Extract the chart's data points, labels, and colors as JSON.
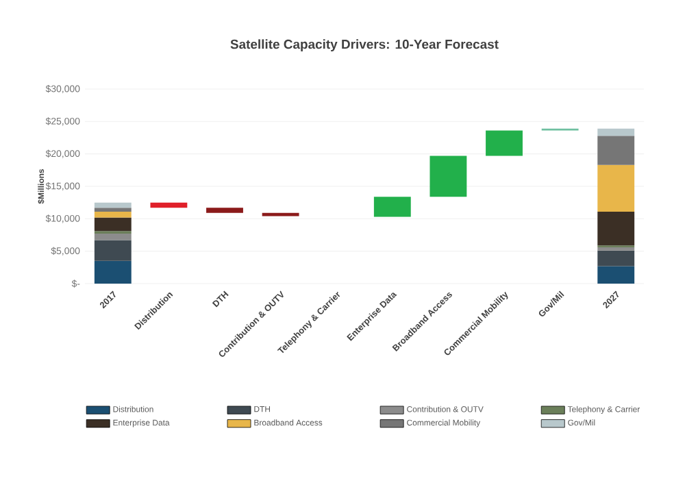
{
  "chart_data": {
    "type": "bar",
    "title": "Satellite Capacity Drivers: 10-Year Forecast",
    "ylabel": "$Millions",
    "categories": [
      "2017",
      "Distribution",
      "DTH",
      "Contribution & OUTV",
      "Telephony & Carrier",
      "Enterprise Data",
      "Broadband Access",
      "Commercial Mobility",
      "Gov/Mil",
      "2027"
    ],
    "stacked": true,
    "series": [
      {
        "name": "Distribution",
        "color": "#1b4f72",
        "values": [
          3500,
          null,
          null,
          null,
          null,
          null,
          null,
          null,
          null,
          2700
        ]
      },
      {
        "name": "DTH",
        "color": "#3f4a52",
        "values": [
          3200,
          null,
          null,
          null,
          null,
          null,
          null,
          null,
          null,
          2400
        ]
      },
      {
        "name": "Contribution & OUTV",
        "color": "#8c8c8c",
        "values": [
          1000,
          null,
          null,
          null,
          null,
          null,
          null,
          null,
          null,
          500
        ]
      },
      {
        "name": "Telephony & Carrier",
        "color": "#6b7f5a",
        "values": [
          400,
          null,
          null,
          null,
          null,
          null,
          null,
          null,
          null,
          300
        ]
      },
      {
        "name": "Enterprise Data",
        "color": "#3b2f25",
        "values": [
          2100,
          null,
          null,
          null,
          null,
          null,
          null,
          null,
          null,
          5200
        ]
      },
      {
        "name": "Broadband Access",
        "color": "#e8b64a",
        "values": [
          900,
          null,
          null,
          null,
          null,
          null,
          null,
          null,
          null,
          7200
        ]
      },
      {
        "name": "Commercial Mobility",
        "color": "#767676",
        "values": [
          600,
          null,
          null,
          null,
          null,
          null,
          null,
          null,
          null,
          4500
        ]
      },
      {
        "name": "Gov/Mil",
        "color": "#b8c8cc",
        "values": [
          800,
          null,
          null,
          null,
          null,
          null,
          null,
          null,
          null,
          1100
        ]
      },
      {
        "values": [
          null,
          -800,
          -800,
          -500,
          null,
          3100,
          6300,
          3900,
          300,
          null
        ],
        "base": [
          null,
          12500,
          11700,
          10900,
          null,
          10300,
          13400,
          19700,
          23600,
          null
        ],
        "colors": [
          "#000000",
          "#e0202a",
          "#8b1a1a",
          "#8b1a1a",
          "#8b1a1a",
          "#22b04b",
          "#22b04b",
          "#22b04b",
          "#6fbfa0",
          "#000000"
        ]
      }
    ],
    "ylim": [
      0,
      30000
    ],
    "yticks": [
      {
        "value": 0,
        "label": "$-"
      },
      {
        "value": 5000,
        "label": "$5,000"
      },
      {
        "value": 10000,
        "label": "$10,000"
      },
      {
        "value": 15000,
        "label": "$15,000"
      },
      {
        "value": 20000,
        "label": "$20,000"
      },
      {
        "value": 25000,
        "label": "$25,000"
      },
      {
        "value": 30000,
        "label": "$30,000"
      }
    ],
    "grid": "y",
    "legend": "bottom"
  }
}
